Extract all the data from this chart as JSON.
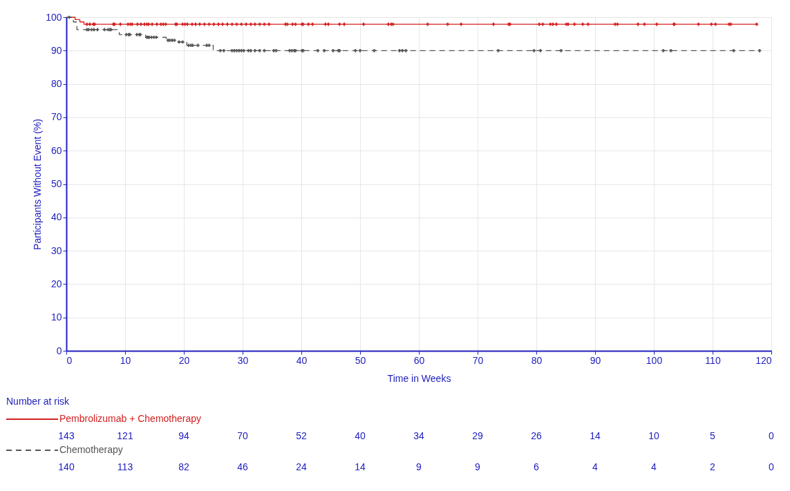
{
  "chart_data": {
    "type": "step",
    "xlabel": "Time in Weeks",
    "ylabel": "Participants Without Event (%)",
    "xlim": [
      0,
      120
    ],
    "xticks": [
      0,
      10,
      20,
      30,
      40,
      50,
      60,
      70,
      80,
      90,
      100,
      110,
      120
    ],
    "ylim": [
      0,
      100
    ],
    "yticks": [
      0,
      10,
      20,
      30,
      40,
      50,
      60,
      70,
      80,
      90,
      100
    ],
    "grid": true,
    "legend": "bottom",
    "series": [
      {
        "name": "Pembrolizumab + Chemotherapy",
        "color": "#d42020",
        "line_style": "solid",
        "x": [
          0,
          1.5,
          2.3,
          3,
          117.5
        ],
        "values": [
          100,
          99.3,
          98.6,
          97.9,
          97.9
        ]
      },
      {
        "name": "Chemotherapy",
        "color": "#555555",
        "line_style": "dashed",
        "x": [
          0,
          1.2,
          1.8,
          9,
          13.5,
          17,
          19,
          20.5,
          25,
          118
        ],
        "values": [
          100,
          98.6,
          96.3,
          94.8,
          94.0,
          93.1,
          92.6,
          91.6,
          90.0,
          90.0
        ]
      },
      {
        "type": "scatter",
        "marker": "cross",
        "color": "#d42020",
        "x": [
          3.5,
          4,
          4.6,
          4.8,
          8,
          8.2,
          9.2,
          10.5,
          10.9,
          11.2,
          12.1,
          12.7,
          13.3,
          13.7,
          14,
          14.6,
          15.4,
          16.1,
          16.5,
          16.9,
          18.6,
          18.8,
          19.8,
          20.2,
          20.6,
          21.4,
          22,
          22.7,
          23.5,
          24.3,
          25.1,
          25.9,
          26.6,
          27.4,
          28.2,
          29,
          29.8,
          30.6,
          31.4,
          32.1,
          32.9,
          33.7,
          34.5,
          37.3,
          37.6,
          38.5,
          39,
          40.1,
          40.3,
          41.2,
          41.9,
          44.1,
          44.6,
          46.5,
          47.3,
          50.6,
          54.8,
          55.3,
          55.6,
          61.5,
          64.9,
          67.2,
          72.7,
          75.3,
          75.5,
          80.5,
          81.1,
          82.4,
          82.8,
          83.4,
          85.1,
          85.4,
          86.5,
          87.9,
          88.8,
          93.4,
          93.8,
          97.3,
          98.4,
          100.5,
          103.4,
          103.5,
          107.6,
          109.8,
          110.5,
          112.8,
          113.1,
          117.5
        ],
        "values": [
          97.9,
          97.9,
          97.9,
          97.9,
          97.9,
          97.9,
          97.9,
          97.9,
          97.9,
          97.9,
          97.9,
          97.9,
          97.9,
          97.9,
          97.9,
          97.9,
          97.9,
          97.9,
          97.9,
          97.9,
          97.9,
          97.9,
          97.9,
          97.9,
          97.9,
          97.9,
          97.9,
          97.9,
          97.9,
          97.9,
          97.9,
          97.9,
          97.9,
          97.9,
          97.9,
          97.9,
          97.9,
          97.9,
          97.9,
          97.9,
          97.9,
          97.9,
          97.9,
          97.9,
          97.9,
          97.9,
          97.9,
          97.9,
          97.9,
          97.9,
          97.9,
          97.9,
          97.9,
          97.9,
          97.9,
          97.9,
          97.9,
          97.9,
          97.9,
          97.9,
          97.9,
          97.9,
          97.9,
          97.9,
          97.9,
          97.9,
          97.9,
          97.9,
          97.9,
          97.9,
          97.9,
          97.9,
          97.9,
          97.9,
          97.9,
          97.9,
          97.9,
          97.9,
          97.9,
          97.9,
          97.9,
          97.9,
          97.9,
          97.9,
          97.9,
          97.9,
          97.9,
          97.9
        ]
      },
      {
        "type": "scatter",
        "marker": "cross",
        "color": "#555555",
        "x": [
          0.5,
          3.5,
          3.8,
          4.3,
          4.7,
          5.3,
          6.5,
          7.1,
          7.4,
          7.6,
          10.2,
          10.6,
          10.8,
          12,
          12.4,
          12.6,
          13.7,
          13.9,
          14.1,
          14.5,
          14.9,
          15.3,
          17.3,
          17.6,
          18,
          18.4,
          19.2,
          19.8,
          20.8,
          21.2,
          21.5,
          22.4,
          23.9,
          24.3,
          26.2,
          26.8,
          28.2,
          28.6,
          29,
          29.4,
          29.8,
          30.2,
          31,
          31.4,
          32.1,
          32.9,
          33.7,
          35.3,
          35.7,
          38,
          38.4,
          38.8,
          39,
          40.1,
          40.3,
          42.8,
          43.9,
          45.4,
          46.3,
          46.5,
          49.2,
          50,
          52.4,
          56.7,
          57.2,
          57.8,
          73.5,
          79.6,
          80.7,
          84.2,
          101.6,
          102.9,
          113.6,
          118
        ],
        "values": [
          100,
          96.3,
          96.3,
          96.3,
          96.3,
          96.3,
          96.3,
          96.3,
          96.3,
          96.3,
          94.8,
          94.8,
          94.8,
          94.8,
          94.8,
          94.8,
          94.0,
          94.0,
          94.0,
          94.0,
          94.0,
          94.0,
          93.1,
          93.1,
          93.1,
          93.1,
          92.6,
          92.6,
          91.6,
          91.6,
          91.6,
          91.6,
          91.6,
          91.6,
          90.0,
          90.0,
          90.0,
          90.0,
          90.0,
          90.0,
          90.0,
          90.0,
          90.0,
          90.0,
          90.0,
          90.0,
          90.0,
          90.0,
          90.0,
          90.0,
          90.0,
          90.0,
          90.0,
          90.0,
          90.0,
          90.0,
          90.0,
          90.0,
          90.0,
          90.0,
          90.0,
          90.0,
          90.0,
          90.0,
          90.0,
          90.0,
          90.0,
          90.0,
          90.0,
          90.0,
          90.0,
          90.0,
          90.0,
          90.0
        ]
      }
    ],
    "annotations": [
      "Number at risk",
      "143",
      "121",
      "94",
      "70",
      "52",
      "40",
      "34",
      "29",
      "26",
      "14",
      "10",
      "5",
      "0",
      "140",
      "113",
      "82",
      "46",
      "24",
      "14",
      "9",
      "9",
      "6",
      "4",
      "4",
      "2",
      "0"
    ]
  }
}
